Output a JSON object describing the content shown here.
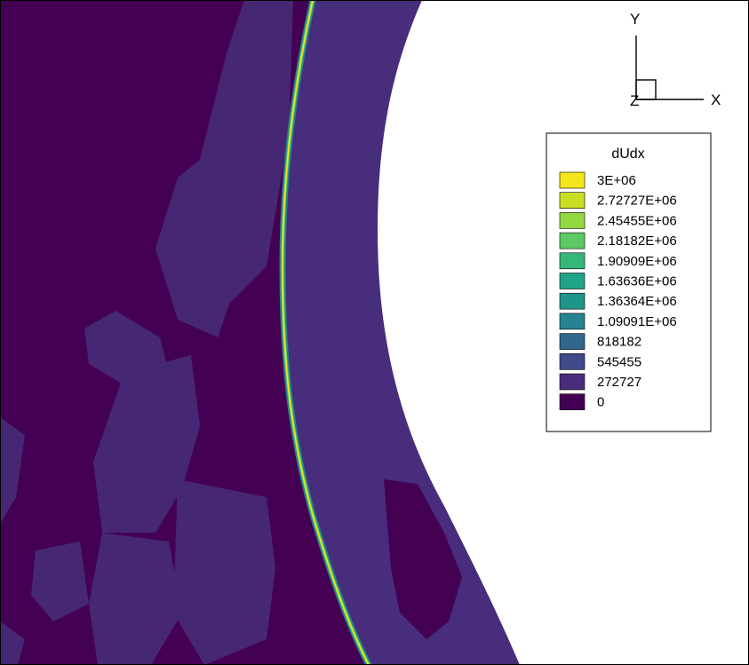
{
  "chart_data": {
    "type": "heatmap",
    "variable": "dUdx",
    "levels": [
      "3E+06",
      "2.72727E+06",
      "2.45455E+06",
      "2.18182E+06",
      "1.90909E+06",
      "1.63636E+06",
      "1.36364E+06",
      "1.09091E+06",
      "818182",
      "545455",
      "272727",
      "0"
    ],
    "level_colors": [
      "#f5e51b",
      "#c8df23",
      "#93d741",
      "#5ec865",
      "#35b779",
      "#20a386",
      "#1f9589",
      "#26828e",
      "#31668e",
      "#3e4a89",
      "#472d7b",
      "#440154"
    ],
    "legend_placement": "right",
    "axes": {
      "x": "X",
      "y": "Y",
      "z": "Z"
    }
  },
  "colors": {
    "background": "#440154",
    "region_low": "#471a64",
    "region_mid": "#482475",
    "shock_core": "#f5e51b",
    "body": "#ffffff"
  }
}
